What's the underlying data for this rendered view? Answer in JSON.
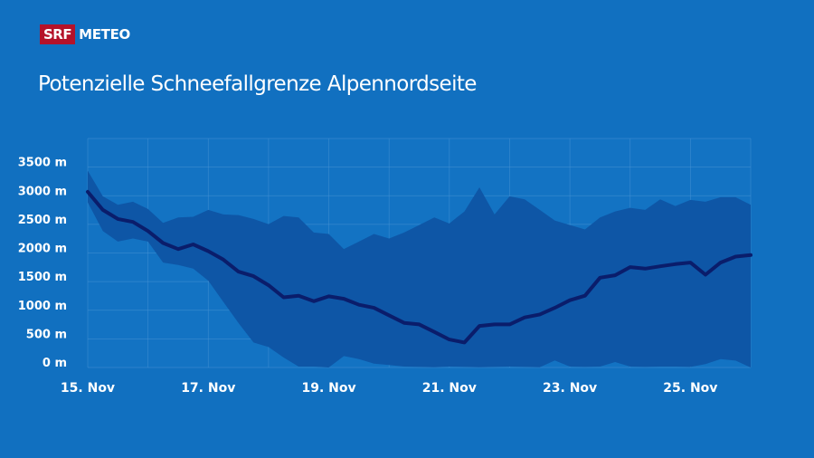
{
  "logo": {
    "brand": "SRF",
    "product": "METEO"
  },
  "chart_data": {
    "type": "area",
    "title": "Potenzielle Schneefallgrenze Alpennordseite",
    "xlabel": "",
    "ylabel": "",
    "ylim": [
      0,
      4000
    ],
    "y_ticks": [
      "0 m",
      "500 m",
      "1000 m",
      "1500 m",
      "2000 m",
      "2500 m",
      "3000 m",
      "3500 m"
    ],
    "y_tick_values": [
      0,
      500,
      1000,
      1500,
      2000,
      2500,
      3000,
      3500
    ],
    "x_ticks": [
      "15. Nov",
      "17. Nov",
      "19. Nov",
      "21. Nov",
      "23. Nov",
      "25. Nov"
    ],
    "xlim": [
      "15 Nov 00:00",
      "26 Nov 00:00"
    ],
    "grid": true,
    "colors": {
      "background": "#1170c0",
      "band": "#0e56a6",
      "median": "#0a1d6b",
      "grid": "#4b95d6"
    },
    "x": [
      "15 Nov 00:00",
      "15 Nov 06:00",
      "15 Nov 12:00",
      "15 Nov 18:00",
      "16 Nov 00:00",
      "16 Nov 06:00",
      "16 Nov 12:00",
      "16 Nov 18:00",
      "17 Nov 00:00",
      "17 Nov 06:00",
      "17 Nov 12:00",
      "17 Nov 18:00",
      "18 Nov 00:00",
      "18 Nov 06:00",
      "18 Nov 12:00",
      "18 Nov 18:00",
      "19 Nov 00:00",
      "19 Nov 06:00",
      "19 Nov 12:00",
      "19 Nov 18:00",
      "20 Nov 00:00",
      "20 Nov 06:00",
      "20 Nov 12:00",
      "20 Nov 18:00",
      "21 Nov 00:00",
      "21 Nov 06:00",
      "21 Nov 12:00",
      "21 Nov 18:00",
      "22 Nov 00:00",
      "22 Nov 06:00",
      "22 Nov 12:00",
      "22 Nov 18:00",
      "23 Nov 00:00",
      "23 Nov 06:00",
      "23 Nov 12:00",
      "23 Nov 18:00",
      "24 Nov 00:00",
      "24 Nov 06:00",
      "24 Nov 12:00",
      "24 Nov 18:00",
      "25 Nov 00:00",
      "25 Nov 06:00",
      "25 Nov 12:00",
      "25 Nov 18:00",
      "26 Nov 00:00"
    ],
    "series": [
      {
        "role": "upper",
        "values": [
          3437,
          2989,
          2842,
          2895,
          2768,
          2526,
          2621,
          2632,
          2753,
          2674,
          2663,
          2595,
          2505,
          2647,
          2621,
          2358,
          2332,
          2068,
          2200,
          2332,
          2253,
          2358,
          2489,
          2621,
          2516,
          2726,
          3147,
          2674,
          2989,
          2937,
          2753,
          2568,
          2489,
          2411,
          2621,
          2726,
          2789,
          2753,
          2937,
          2821,
          2926,
          2895,
          2974,
          2974,
          2842
        ]
      },
      {
        "role": "lower",
        "values": [
          2884,
          2384,
          2200,
          2253,
          2200,
          1832,
          1789,
          1726,
          1516,
          1147,
          779,
          437,
          358,
          174,
          16,
          16,
          0,
          200,
          147,
          68,
          42,
          16,
          10,
          5,
          16,
          10,
          5,
          10,
          16,
          10,
          5,
          121,
          16,
          10,
          16,
          95,
          16,
          10,
          16,
          16,
          10,
          60,
          147,
          120,
          0
        ]
      },
      {
        "role": "median",
        "values": [
          3068,
          2753,
          2595,
          2542,
          2384,
          2174,
          2068,
          2150,
          2032,
          1884,
          1674,
          1595,
          1437,
          1226,
          1253,
          1158,
          1242,
          1200,
          1095,
          1042,
          911,
          779,
          753,
          621,
          489,
          437,
          726,
          753,
          753,
          874,
          926,
          1042,
          1174,
          1253,
          1568,
          1611,
          1753,
          1726,
          1768,
          1805,
          1832,
          1621,
          1832,
          1937,
          1963
        ]
      }
    ]
  }
}
